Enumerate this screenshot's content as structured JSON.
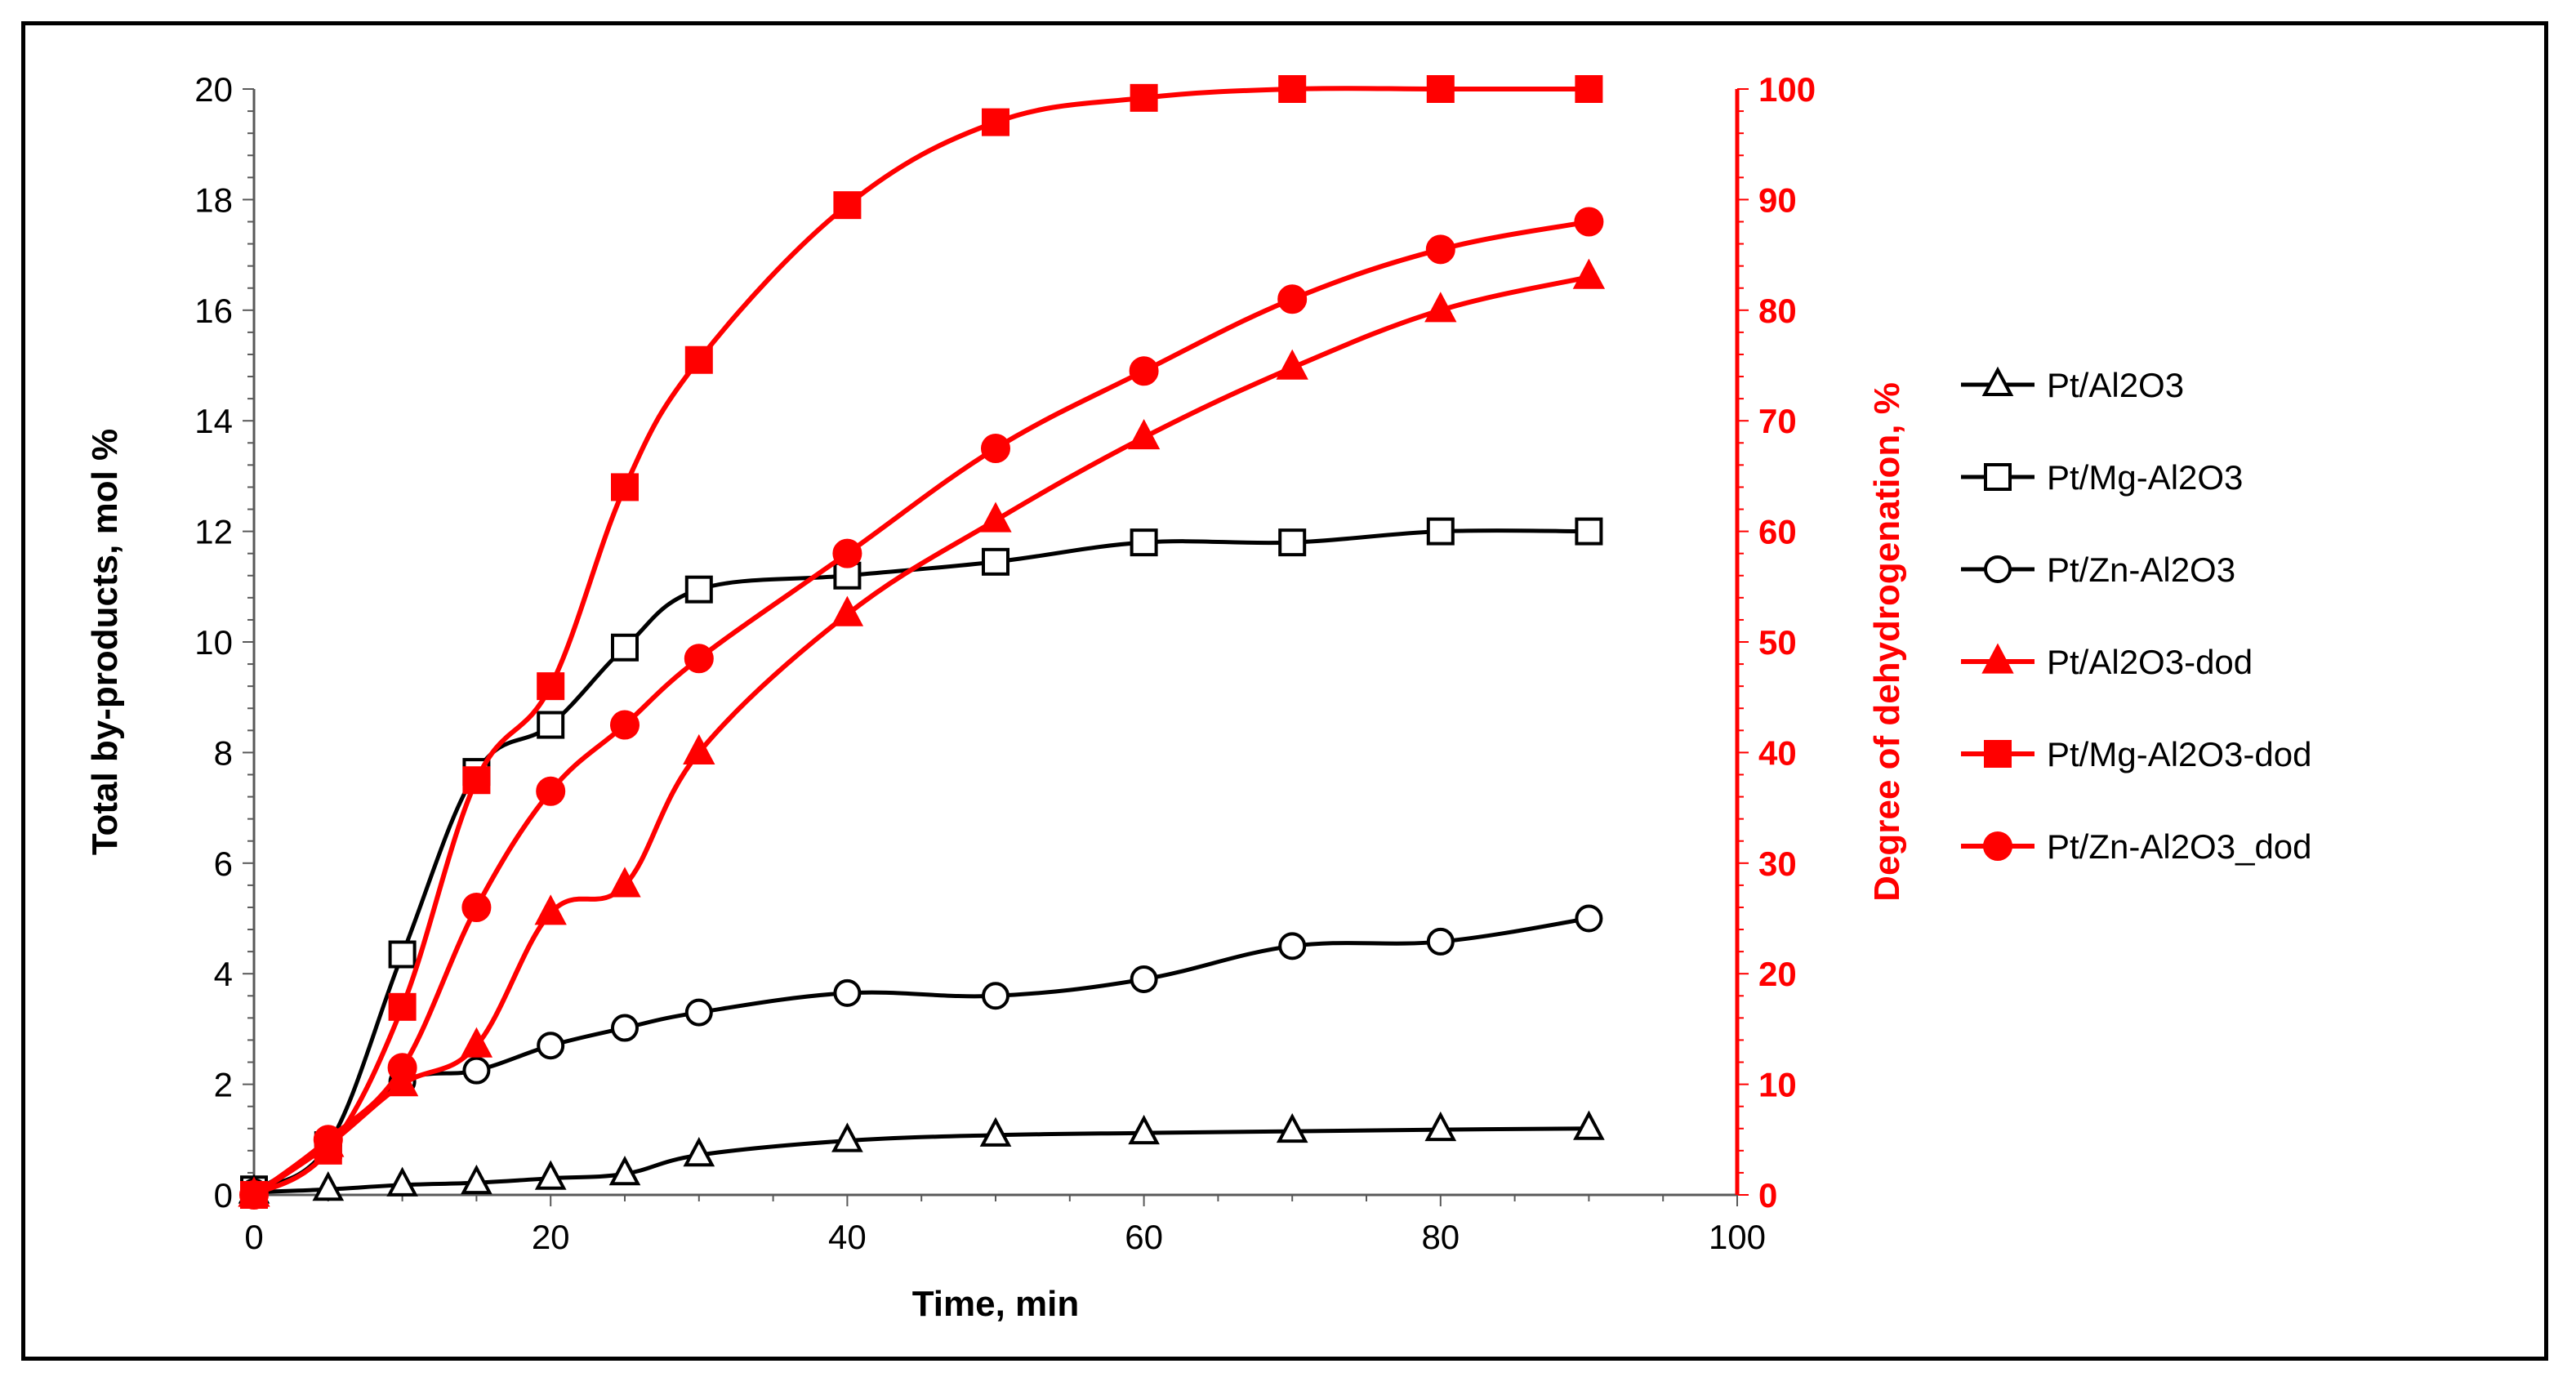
{
  "chart_data": {
    "type": "line",
    "title": "",
    "xlabel": "Time, min",
    "ylabel": "Total by-products, mol %",
    "y2label": "Degree of dehydrogenation, %",
    "xlim": [
      0,
      100
    ],
    "ylim": [
      0,
      20
    ],
    "y2lim": [
      0,
      100
    ],
    "x_ticks": [
      0,
      20,
      40,
      60,
      80,
      100
    ],
    "y_ticks": [
      0,
      2,
      4,
      6,
      8,
      10,
      12,
      14,
      16,
      18,
      20
    ],
    "y2_ticks": [
      0,
      10,
      20,
      30,
      40,
      50,
      60,
      70,
      80,
      90,
      100
    ],
    "legend_position": "right",
    "colors": {
      "black": "#000000",
      "red": "#ff0000"
    },
    "series": [
      {
        "name": "Pt/Al2O3",
        "axis": "left",
        "color": "#000000",
        "marker": "triangle",
        "filled": false,
        "x": [
          0,
          5,
          10,
          15,
          20,
          25,
          30,
          40,
          50,
          60,
          70,
          80,
          90
        ],
        "y": [
          0.05,
          0.1,
          0.18,
          0.22,
          0.3,
          0.38,
          0.72,
          0.98,
          1.08,
          1.12,
          1.15,
          1.18,
          1.2
        ]
      },
      {
        "name": "Pt/Mg-Al2O3",
        "axis": "left",
        "color": "#000000",
        "marker": "square",
        "filled": false,
        "x": [
          0,
          5,
          10,
          15,
          20,
          25,
          30,
          40,
          50,
          60,
          70,
          80,
          90
        ],
        "y": [
          0.1,
          0.9,
          4.35,
          7.65,
          8.5,
          9.9,
          10.95,
          11.2,
          11.45,
          11.8,
          11.8,
          12.0,
          12.0
        ]
      },
      {
        "name": "Pt/Zn-Al2O3",
        "axis": "left",
        "color": "#000000",
        "marker": "circle",
        "filled": false,
        "x": [
          0,
          5,
          10,
          15,
          20,
          25,
          30,
          40,
          50,
          60,
          70,
          80,
          90
        ],
        "y": [
          0.05,
          0.9,
          2.05,
          2.25,
          2.7,
          3.02,
          3.3,
          3.65,
          3.6,
          3.9,
          4.5,
          4.58,
          5.0
        ]
      },
      {
        "name": "Pt/Al2O3-dod",
        "axis": "right",
        "color": "#ff0000",
        "marker": "triangle",
        "filled": true,
        "x": [
          0,
          5,
          10,
          15,
          20,
          25,
          30,
          40,
          50,
          60,
          70,
          80,
          90
        ],
        "y": [
          0,
          4.5,
          10.0,
          13.5,
          25.5,
          28.0,
          40.0,
          52.5,
          61.0,
          68.5,
          74.8,
          80.0,
          83.0
        ]
      },
      {
        "name": "Pt/Mg-Al2O3-dod",
        "axis": "right",
        "color": "#ff0000",
        "marker": "square",
        "filled": true,
        "x": [
          0,
          5,
          10,
          15,
          20,
          25,
          30,
          40,
          50,
          60,
          70,
          80,
          90
        ],
        "y": [
          0,
          4.0,
          17.0,
          37.5,
          46.0,
          64.0,
          75.5,
          89.5,
          97.0,
          99.2,
          100,
          100,
          100
        ]
      },
      {
        "name": "Pt/Zn-Al2O3_dod",
        "axis": "right",
        "color": "#ff0000",
        "marker": "circle",
        "filled": true,
        "x": [
          0,
          5,
          10,
          15,
          20,
          25,
          30,
          40,
          50,
          60,
          70,
          80,
          90
        ],
        "y": [
          0,
          5.0,
          11.5,
          26.0,
          36.5,
          42.5,
          48.5,
          58.0,
          67.5,
          74.5,
          81.0,
          85.5,
          88.0
        ]
      }
    ]
  }
}
